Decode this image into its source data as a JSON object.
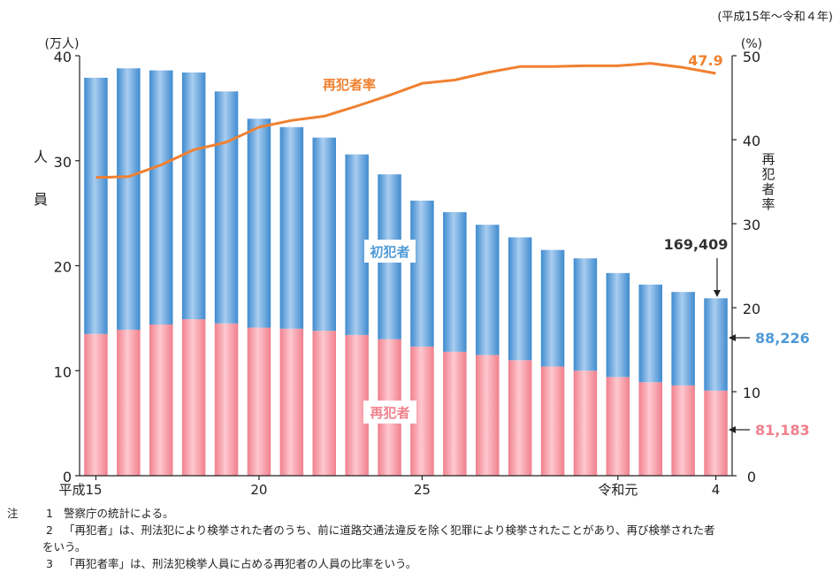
{
  "chart_data": {
    "type": "bar",
    "stacked": true,
    "period_note": "(平成15年〜令和４年)",
    "left_axis": {
      "unit": "(万人)",
      "label_chars": [
        "人",
        "員"
      ],
      "ylim": [
        0,
        40
      ],
      "ticks": [
        0,
        10,
        20,
        30,
        40
      ]
    },
    "right_axis": {
      "unit": "(%)",
      "label_chars": [
        "再",
        "犯",
        "者",
        "率"
      ],
      "ylim": [
        0,
        50
      ],
      "ticks": [
        0,
        10,
        20,
        30,
        40,
        50
      ]
    },
    "x_labels": [
      {
        "index": 0,
        "text": "平成15"
      },
      {
        "index": 5,
        "text": "20"
      },
      {
        "index": 10,
        "text": "25"
      },
      {
        "index": 16,
        "text": "令和元"
      },
      {
        "index": 19,
        "text": "4"
      }
    ],
    "series": [
      {
        "name": "再犯者",
        "color": "#f28b95",
        "values": [
          13.5,
          13.9,
          14.4,
          14.9,
          14.5,
          14.1,
          14.0,
          13.8,
          13.4,
          13.0,
          12.3,
          11.8,
          11.5,
          11.0,
          10.4,
          10.0,
          9.4,
          8.9,
          8.6,
          8.1
        ]
      },
      {
        "name": "初犯者",
        "color": "#5b9fd8",
        "values": [
          24.4,
          24.9,
          24.2,
          23.5,
          22.1,
          19.9,
          19.2,
          18.4,
          17.2,
          15.7,
          13.9,
          13.3,
          12.4,
          11.7,
          11.1,
          10.7,
          9.9,
          9.3,
          8.9,
          8.8
        ]
      }
    ],
    "rate_line": {
      "name": "再犯者率",
      "color": "#f08030",
      "values": [
        35.5,
        35.6,
        37.0,
        38.8,
        39.7,
        41.5,
        42.3,
        42.8,
        44.0,
        45.3,
        46.7,
        47.1,
        48.0,
        48.7,
        48.7,
        48.8,
        48.8,
        49.1,
        48.6,
        47.9
      ]
    },
    "annotations": {
      "total_last": "169,409",
      "first_offender_last": "88,226",
      "repeat_offender_last": "81,183",
      "rate_last": "47.9"
    }
  },
  "notes": {
    "mark": "注",
    "items": [
      {
        "num": "1",
        "text": "警察庁の統計による。",
        "cont": ""
      },
      {
        "num": "2",
        "text": "「再犯者」は、刑法犯により検挙された者のうち、前に道路交通法違反を除く犯罪により検挙されたことがあり、再び検挙された者",
        "cont": "をいう。"
      },
      {
        "num": "3",
        "text": "「再犯者率」は、刑法犯検挙人員に占める再犯者の人員の比率をいう。",
        "cont": ""
      }
    ]
  }
}
